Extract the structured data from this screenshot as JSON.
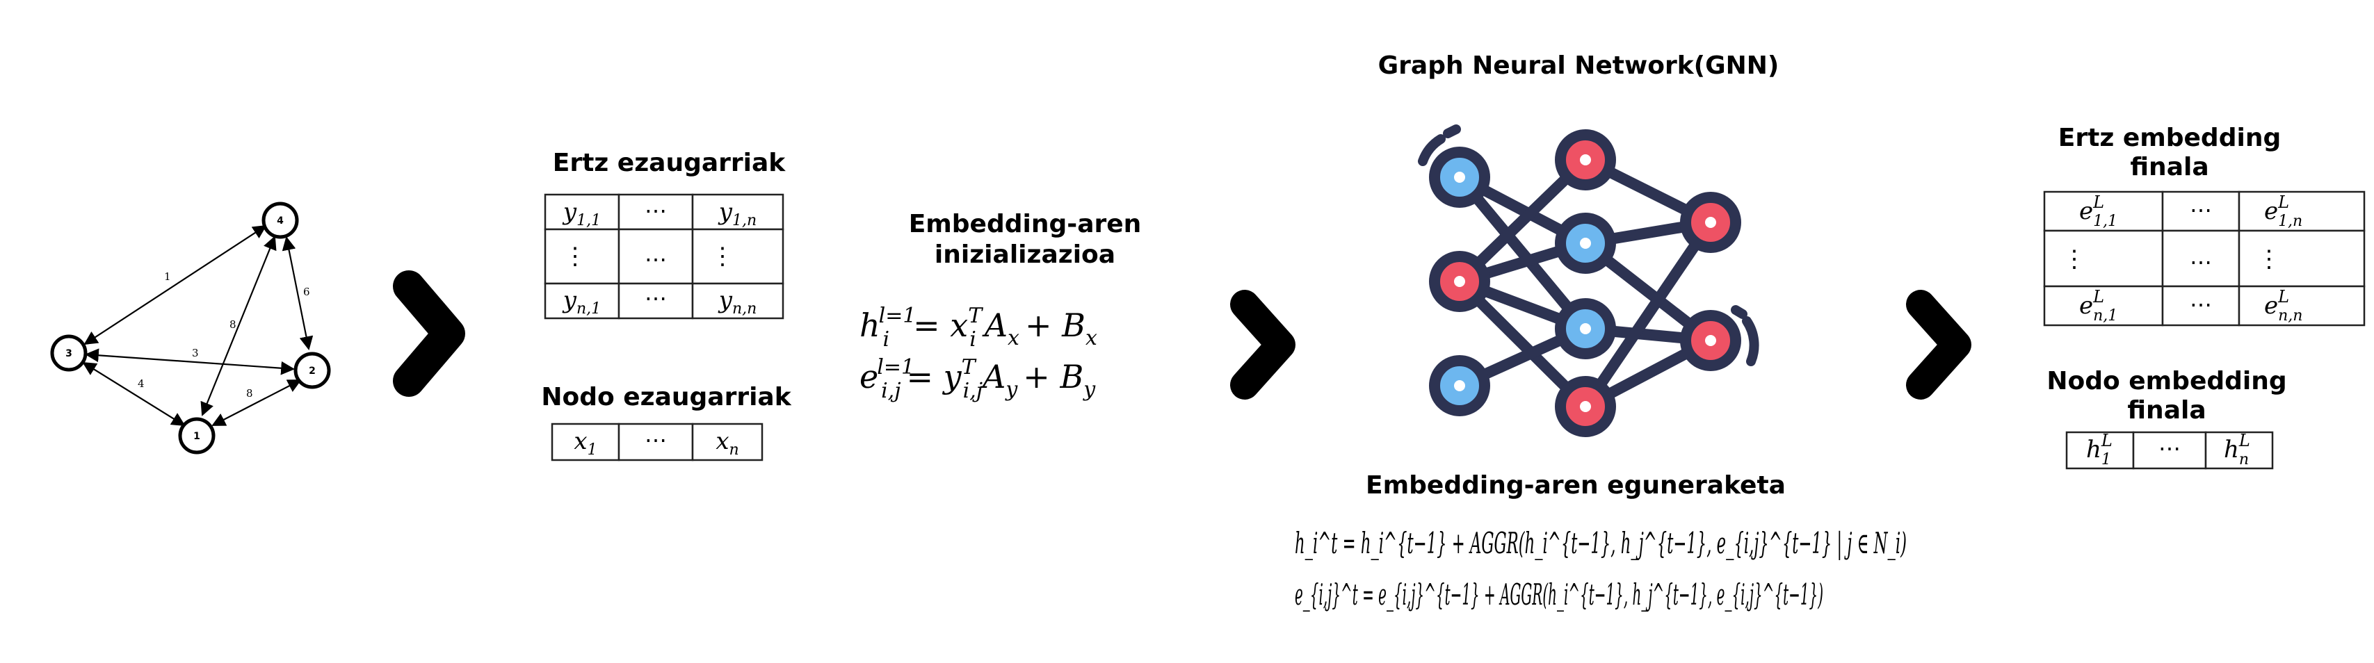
{
  "graph": {
    "nodes": [
      {
        "id": "4",
        "label": "4"
      },
      {
        "id": "3",
        "label": "3"
      },
      {
        "id": "2",
        "label": "2"
      },
      {
        "id": "1",
        "label": "1"
      }
    ],
    "edges": [
      {
        "from": "3",
        "to": "4",
        "weight": "1"
      },
      {
        "from": "4",
        "to": "2",
        "weight": "6"
      },
      {
        "from": "3",
        "to": "2",
        "weight": "3"
      },
      {
        "from": "4",
        "to": "1",
        "weight": "8"
      },
      {
        "from": "3",
        "to": "1",
        "weight": "4"
      },
      {
        "from": "1",
        "to": "2",
        "weight": "8"
      }
    ]
  },
  "edge_features": {
    "title": "Ertz ezaugarriak",
    "rows": [
      [
        "y",
        "1,1",
        "⋯",
        "y",
        "1,n"
      ],
      [
        "⋮",
        "",
        "⋯",
        "⋮",
        ""
      ],
      [
        "y",
        "n,1",
        "⋯",
        "y",
        "n,n"
      ]
    ]
  },
  "node_features": {
    "title": "Nodo ezaugarriak",
    "cells": [
      [
        "x",
        "1"
      ],
      [
        "⋯",
        ""
      ],
      [
        "x",
        "n"
      ]
    ]
  },
  "init": {
    "title_line1": "Embedding-aren",
    "title_line2": "inizializazioa",
    "eq1": {
      "lhs": "h",
      "sub": "i",
      "sup": "l=1",
      "rhs1": "= x",
      "rhs_sub": "i",
      "rhs_sup": "T",
      "rest": "A",
      "rest_sub": "x",
      "plus": "+ B",
      "plus_sub": "x"
    },
    "eq2": {
      "lhs": "e",
      "sub": "i,j",
      "sup": "l=1",
      "rhs1": "= y",
      "rhs_sub": "i,j",
      "rhs_sup": "T",
      "rest": "A",
      "rest_sub": "y",
      "plus": "+ B",
      "plus_sub": "y"
    }
  },
  "gnn": {
    "title": "Graph Neural Network(GNN)",
    "colors": {
      "dark": "#2d3352",
      "blue": "#6db7ef",
      "red": "#ee5264",
      "white": "#ffffff"
    }
  },
  "update": {
    "title": "Embedding-aren eguneraketa",
    "eq1": "h_i^t = h_i^{t−1} + AGGR(h_i^{t−1}, h_j^{t−1}, e_{i,j}^{t−1} | j ∈ N_i)",
    "eq2": "e_{i,j}^t = e_{i,j}^{t−1} + AGGR(h_i^{t−1}, h_j^{t−1}, e_{i,j}^{t−1})"
  },
  "final_edge": {
    "title_line1": "Ertz embedding",
    "title_line2": "finala",
    "rows": [
      [
        "e",
        "1,1",
        "L",
        "⋯",
        "e",
        "1,n",
        "L"
      ],
      [
        "⋮",
        "",
        "",
        "⋯",
        "⋮",
        "",
        ""
      ],
      [
        "e",
        "n,1",
        "L",
        "⋯",
        "e",
        "n,n",
        "L"
      ]
    ]
  },
  "final_node": {
    "title_line1": "Nodo embedding",
    "title_line2": "finala",
    "cells": [
      [
        "h",
        "1",
        "L"
      ],
      [
        "⋯",
        "",
        ""
      ],
      [
        "h",
        "n",
        "L"
      ]
    ]
  },
  "colors": {
    "chevron": "#000000"
  }
}
